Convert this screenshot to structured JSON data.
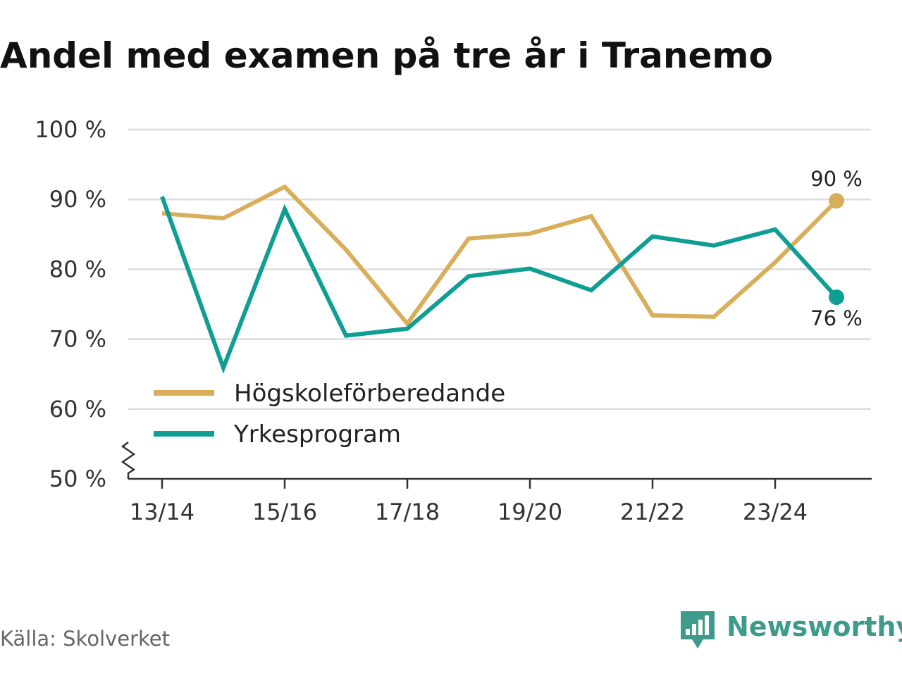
{
  "chart_data": {
    "type": "line",
    "title": "Andel med examen på tre år i Tranemo",
    "xlabel": "",
    "ylabel": "",
    "ylim": [
      50,
      100
    ],
    "y_ticks": [
      50,
      60,
      70,
      80,
      90,
      100
    ],
    "y_tick_suffix": " %",
    "y_axis_break": true,
    "grid": true,
    "legend_position": "bottom-left",
    "categories": [
      "13/14",
      "14/15",
      "15/16",
      "16/17",
      "17/18",
      "18/19",
      "19/20",
      "20/21",
      "21/22",
      "22/23",
      "23/24",
      "24/25"
    ],
    "x_tick_labels": [
      "13/14",
      "15/16",
      "17/18",
      "19/20",
      "21/22",
      "23/24"
    ],
    "series": [
      {
        "name": "Högskoleförberedande",
        "color": "#d9ae5a",
        "values": [
          88.0,
          87.3,
          91.8,
          82.8,
          72.2,
          84.4,
          85.1,
          87.6,
          73.4,
          73.2,
          81.0,
          89.8
        ],
        "end_label": "90 %"
      },
      {
        "name": "Yrkesprogram",
        "color": "#0f9e93",
        "values": [
          90.4,
          65.9,
          88.6,
          70.5,
          71.5,
          79.0,
          80.1,
          77.0,
          84.7,
          83.4,
          85.7,
          76.0
        ],
        "end_label": "76 %"
      }
    ]
  },
  "footer": {
    "source": "Källa: Skolverket",
    "brand": "Newsworthy",
    "brand_color": "#3e9a8a",
    "brand_icon": "bar-chart-speech-bubble-icon"
  }
}
